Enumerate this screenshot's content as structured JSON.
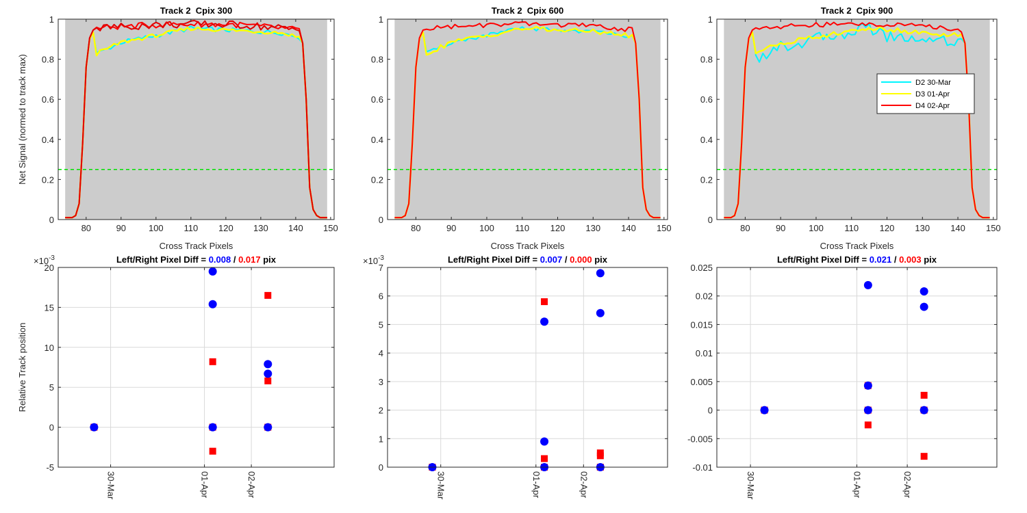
{
  "figure": {
    "background": "#ffffff",
    "grid_color": "#d9d9d9",
    "axes_color": "#262626"
  },
  "chart_data": [
    {
      "type": "line",
      "title": "Track 2  Cpix 300",
      "xlabel": "Cross Track Pixels",
      "ylabel": "Net Signal (normed to track max)",
      "xlim": [
        72,
        151
      ],
      "ylim": [
        0,
        1
      ],
      "xticks": [
        80,
        90,
        100,
        110,
        120,
        130,
        140,
        150
      ],
      "yticks": [
        0,
        0.2,
        0.4,
        0.6,
        0.8,
        1
      ],
      "yticklabels": [
        "0",
        "0.2",
        "0.4",
        "0.6",
        "0.8",
        "1"
      ],
      "shaded_region": {
        "x": [
          74,
          149
        ],
        "color": "#cccccc"
      },
      "threshold": {
        "y": 0.25,
        "color": "#00e000",
        "style": "dashed"
      },
      "legend": {
        "show": false
      },
      "series": [
        {
          "name": "D2 30-Mar",
          "color": "#00f5ff",
          "variant": "lower",
          "amp": 0.012
        },
        {
          "name": "D3 01-Apr",
          "color": "#ffff00",
          "variant": "lower",
          "amp": 0.01
        },
        {
          "name": "D4 02-Apr",
          "color": "#ff0000",
          "variant": "upper",
          "amp": 0.015
        },
        {
          "name": "D4 02-Apr",
          "color": "#e00000",
          "variant": "upper",
          "amp": 0.02
        }
      ]
    },
    {
      "type": "line",
      "title": "Track 2  Cpix 600",
      "xlabel": "Cross Track Pixels",
      "ylabel": "",
      "xlim": [
        72,
        151
      ],
      "ylim": [
        0,
        1
      ],
      "xticks": [
        80,
        90,
        100,
        110,
        120,
        130,
        140,
        150
      ],
      "yticks": [
        0,
        0.2,
        0.4,
        0.6,
        0.8,
        1
      ],
      "yticklabels": [
        "0",
        "0.2",
        "0.4",
        "0.6",
        "0.8",
        "1"
      ],
      "shaded_region": {
        "x": [
          74,
          149
        ],
        "color": "#cccccc"
      },
      "threshold": {
        "y": 0.25,
        "color": "#00e000",
        "style": "dashed"
      },
      "legend": {
        "show": false
      },
      "series": [
        {
          "name": "D2 30-Mar",
          "color": "#00f5ff",
          "variant": "lower",
          "amp": 0.01
        },
        {
          "name": "D3 01-Apr",
          "color": "#ffff00",
          "variant": "lower",
          "amp": 0.012
        },
        {
          "name": "D4 02-Apr",
          "color": "#ff0000",
          "variant": "upper",
          "amp": 0.012
        }
      ]
    },
    {
      "type": "line",
      "title": "Track 2  Cpix 900",
      "xlabel": "Cross Track Pixels",
      "ylabel": "",
      "xlim": [
        72,
        151
      ],
      "ylim": [
        0,
        1
      ],
      "xticks": [
        80,
        90,
        100,
        110,
        120,
        130,
        140,
        150
      ],
      "yticks": [
        0,
        0.2,
        0.4,
        0.6,
        0.8,
        1
      ],
      "yticklabels": [
        "0",
        "0.2",
        "0.4",
        "0.6",
        "0.8",
        "1"
      ],
      "shaded_region": {
        "x": [
          74,
          149
        ],
        "color": "#cccccc"
      },
      "threshold": {
        "y": 0.25,
        "color": "#00e000",
        "style": "dashed"
      },
      "legend": {
        "show": true,
        "location": "right"
      },
      "series": [
        {
          "name": "D2 30-Mar",
          "color": "#00f5ff",
          "variant": "cyan900",
          "amp": 0.03
        },
        {
          "name": "D3 01-Apr",
          "color": "#ffff00",
          "variant": "yellow900",
          "amp": 0.012
        },
        {
          "name": "D4 02-Apr",
          "color": "#ff0000",
          "variant": "upper",
          "amp": 0.012
        }
      ]
    },
    {
      "type": "scatter",
      "title": {
        "prefix": "Left/Right Pixel Diff = ",
        "left": "0.008",
        "sep": " / ",
        "right": "0.017",
        "suffix": " pix"
      },
      "xlabel": "",
      "ylabel": "Relative Track position",
      "exponent": "×10",
      "exponent_power": "-3",
      "xlim": [
        0,
        100
      ],
      "ylim": [
        -5,
        20
      ],
      "xticks": [
        19,
        53,
        70
      ],
      "xticklabels": [
        "30-Mar",
        "01-Apr",
        "02-Apr"
      ],
      "yticks": [
        -5,
        0,
        5,
        10,
        15,
        20
      ],
      "yticklabels": [
        "-5",
        "0",
        "5",
        "10",
        "15",
        "20"
      ],
      "left_color": "#0000ff",
      "right_color": "#ff0000",
      "blue_circles": [
        {
          "x": 13,
          "y": 0
        },
        {
          "x": 56,
          "y": 19.5
        },
        {
          "x": 56,
          "y": 15.4
        },
        {
          "x": 56,
          "y": 0
        },
        {
          "x": 76,
          "y": 7.9
        },
        {
          "x": 76,
          "y": 6.7
        },
        {
          "x": 76,
          "y": 0
        }
      ],
      "red_squares": [
        {
          "x": 13,
          "y": 0
        },
        {
          "x": 56,
          "y": 8.2
        },
        {
          "x": 56,
          "y": -3
        },
        {
          "x": 56,
          "y": 0
        },
        {
          "x": 76,
          "y": 16.5
        },
        {
          "x": 76,
          "y": 5.8
        },
        {
          "x": 76,
          "y": 0
        }
      ]
    },
    {
      "type": "scatter",
      "title": {
        "prefix": "Left/Right Pixel Diff = ",
        "left": "0.007",
        "sep": " / ",
        "right": "0.000",
        "suffix": " pix"
      },
      "xlabel": "",
      "ylabel": "",
      "exponent": "×10",
      "exponent_power": "-3",
      "xlim": [
        0,
        100
      ],
      "ylim": [
        0,
        7
      ],
      "xticks": [
        19,
        53,
        70
      ],
      "xticklabels": [
        "30-Mar",
        "01-Apr",
        "02-Apr"
      ],
      "yticks": [
        0,
        1,
        2,
        3,
        4,
        5,
        6,
        7
      ],
      "yticklabels": [
        "0",
        "1",
        "2",
        "3",
        "4",
        "5",
        "6",
        "7"
      ],
      "left_color": "#0000ff",
      "right_color": "#ff0000",
      "blue_circles": [
        {
          "x": 16,
          "y": 0
        },
        {
          "x": 56,
          "y": 5.1
        },
        {
          "x": 56,
          "y": 0.9
        },
        {
          "x": 56,
          "y": 0
        },
        {
          "x": 76,
          "y": 6.8
        },
        {
          "x": 76,
          "y": 5.4
        },
        {
          "x": 76,
          "y": 0
        }
      ],
      "red_squares": [
        {
          "x": 16,
          "y": 0
        },
        {
          "x": 56,
          "y": 5.8
        },
        {
          "x": 56,
          "y": 0.3
        },
        {
          "x": 56,
          "y": 0
        },
        {
          "x": 76,
          "y": 0.5
        },
        {
          "x": 76,
          "y": 0.4
        },
        {
          "x": 76,
          "y": 0
        }
      ]
    },
    {
      "type": "scatter",
      "title": {
        "prefix": "Left/Right Pixel Diff = ",
        "left": "0.021",
        "sep": " / ",
        "right": "0.003",
        "suffix": " pix"
      },
      "xlabel": "",
      "ylabel": "",
      "exponent": "",
      "exponent_power": "",
      "xlim": [
        0,
        100
      ],
      "ylim": [
        -0.01,
        0.025
      ],
      "xticks": [
        12,
        50,
        68
      ],
      "xticklabels": [
        "30-Mar",
        "01-Apr",
        "02-Apr"
      ],
      "yticks": [
        -0.01,
        -0.005,
        0,
        0.005,
        0.01,
        0.015,
        0.02,
        0.025
      ],
      "yticklabels": [
        "-0.01",
        "-0.005",
        "0",
        "0.005",
        "0.01",
        "0.015",
        "0.02",
        "0.025"
      ],
      "left_color": "#0000ff",
      "right_color": "#ff0000",
      "blue_circles": [
        {
          "x": 17,
          "y": 0
        },
        {
          "x": 54,
          "y": 0.0219
        },
        {
          "x": 54,
          "y": 0.0043
        },
        {
          "x": 54,
          "y": 0
        },
        {
          "x": 74,
          "y": 0.0208
        },
        {
          "x": 74,
          "y": 0.0181
        },
        {
          "x": 74,
          "y": 0
        }
      ],
      "red_squares": [
        {
          "x": 17,
          "y": 0
        },
        {
          "x": 54,
          "y": 0.0043
        },
        {
          "x": 54,
          "y": -0.0026
        },
        {
          "x": 54,
          "y": 0
        },
        {
          "x": 74,
          "y": 0.0026
        },
        {
          "x": 74,
          "y": -0.0081
        },
        {
          "x": 74,
          "y": 0
        }
      ]
    }
  ]
}
